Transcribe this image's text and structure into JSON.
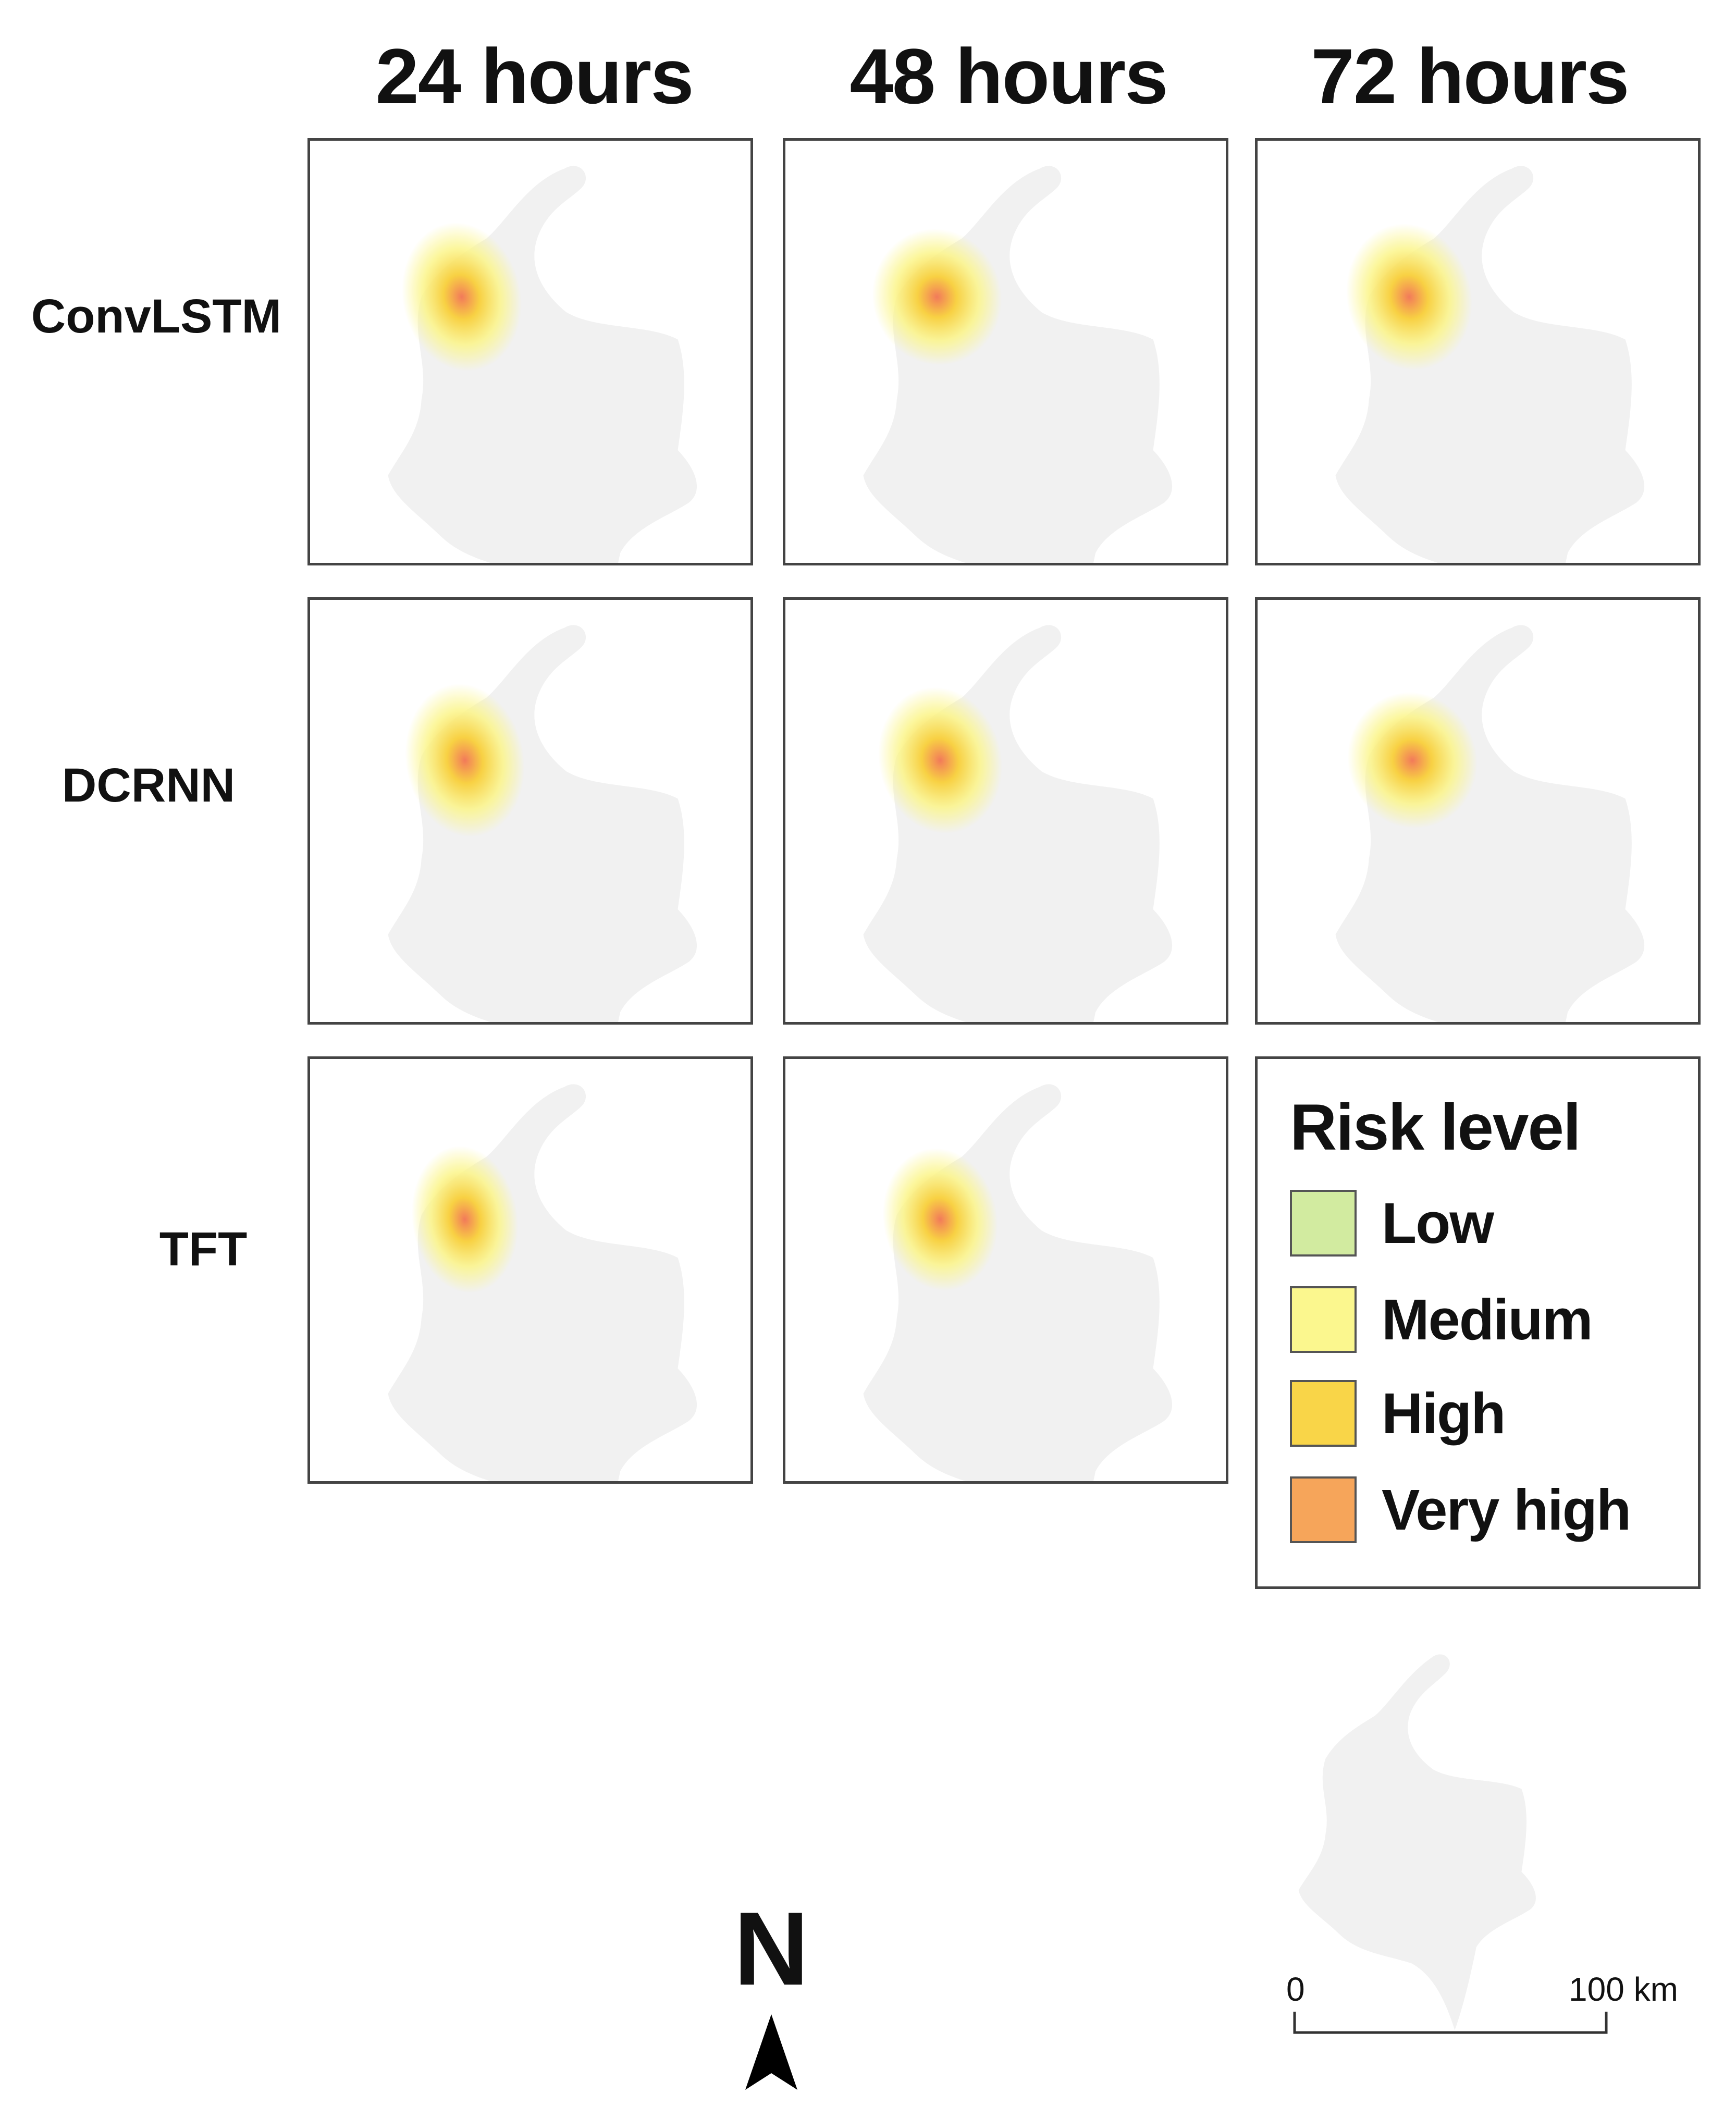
{
  "columns": [
    "24 hours",
    "48 hours",
    "72 hours"
  ],
  "rows": [
    "ConvLSTM",
    "DCRNN",
    "TFT"
  ],
  "legend": {
    "title": "Risk level",
    "items": [
      {
        "label": "Low",
        "color": "#d2eba0"
      },
      {
        "label": "Medium",
        "color": "#fbf78e"
      },
      {
        "label": "High",
        "color": "#f9d548"
      },
      {
        "label": "Very high",
        "color": "#f6a55a"
      }
    ]
  },
  "north_arrow": {
    "label": "N"
  },
  "scale_bar": {
    "start": "0",
    "end": "100 km"
  },
  "colors": {
    "country_fill": "#f1f1f1",
    "hotspot_core": "#f27a5a",
    "hotspot_mid": "#f8cf3a",
    "hotspot_outer": "#fbf58a",
    "panel_border": "#444444"
  }
}
